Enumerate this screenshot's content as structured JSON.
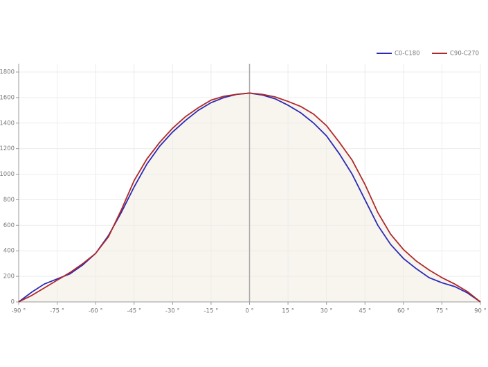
{
  "chart_data": {
    "type": "line",
    "x": [
      -90,
      -85,
      -80,
      -75,
      -70,
      -65,
      -60,
      -55,
      -50,
      -45,
      -40,
      -35,
      -30,
      -25,
      -20,
      -15,
      -10,
      -5,
      0,
      5,
      10,
      15,
      20,
      25,
      30,
      35,
      40,
      45,
      50,
      55,
      60,
      65,
      70,
      75,
      80,
      85,
      90
    ],
    "series": [
      {
        "name": "C0-C180",
        "color": "#2a2ab8",
        "values": [
          0,
          75,
          140,
          180,
          220,
          290,
          380,
          520,
          700,
          900,
          1080,
          1220,
          1330,
          1420,
          1500,
          1560,
          1600,
          1625,
          1635,
          1620,
          1590,
          1540,
          1480,
          1400,
          1300,
          1160,
          1000,
          800,
          600,
          450,
          340,
          260,
          190,
          150,
          120,
          70,
          0
        ]
      },
      {
        "name": "C90-C270",
        "color": "#b0282a",
        "values": [
          0,
          50,
          110,
          170,
          230,
          300,
          380,
          510,
          720,
          950,
          1120,
          1250,
          1360,
          1450,
          1520,
          1580,
          1610,
          1625,
          1635,
          1625,
          1605,
          1570,
          1530,
          1470,
          1380,
          1250,
          1110,
          920,
          700,
          530,
          410,
          320,
          250,
          190,
          140,
          80,
          0
        ]
      }
    ],
    "xlim": [
      -90,
      90
    ],
    "xticks": [
      {
        "value": -90,
        "label": "-90 °"
      },
      {
        "value": -75,
        "label": "-75 °"
      },
      {
        "value": -60,
        "label": "-60 °"
      },
      {
        "value": -45,
        "label": "-45 °"
      },
      {
        "value": -30,
        "label": "-30 °"
      },
      {
        "value": -15,
        "label": "-15 °"
      },
      {
        "value": 0,
        "label": "0 °"
      },
      {
        "value": 15,
        "label": "15 °"
      },
      {
        "value": 30,
        "label": "30 °"
      },
      {
        "value": 45,
        "label": "45 °"
      },
      {
        "value": 60,
        "label": "60 °"
      },
      {
        "value": 75,
        "label": "75 °"
      },
      {
        "value": 90,
        "label": "90 °"
      }
    ],
    "ylim": [
      0,
      1800
    ],
    "yticks": [
      0,
      200,
      400,
      600,
      800,
      1000,
      1200,
      1400,
      1600,
      1800
    ],
    "grid": true,
    "legend": "top-right"
  }
}
